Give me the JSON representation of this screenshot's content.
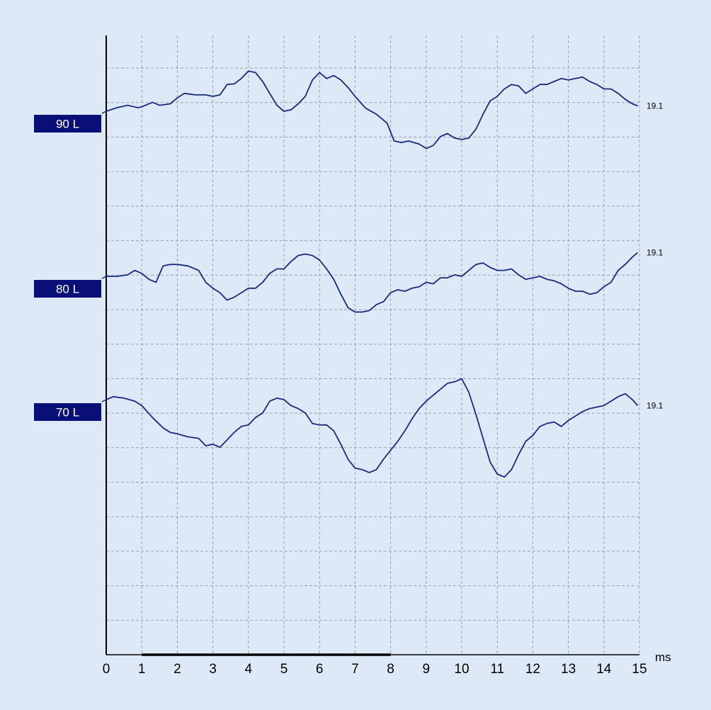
{
  "chart_data": {
    "type": "line",
    "xlabel": "ms",
    "xlim": [
      0,
      15
    ],
    "x_ticks": [
      "0",
      "1",
      "2",
      "3",
      "4",
      "5",
      "6",
      "7",
      "8",
      "9",
      "10",
      "11",
      "12",
      "13",
      "14",
      "15"
    ],
    "grid": true,
    "highlight_range": [
      1,
      8
    ],
    "colors": {
      "background": "#dde9f6",
      "trace": "#1a2a7c",
      "label_box": "#0a0f78",
      "label_text": "#ffffff",
      "grid": "#9aa3ad",
      "axis": "#000000"
    },
    "series": [
      {
        "name": "90 L",
        "end_label": "19.1",
        "x": [
          0,
          0.3,
          0.6,
          0.9,
          1.0,
          1.3,
          1.5,
          1.8,
          2.0,
          2.2,
          2.5,
          2.8,
          3.0,
          3.2,
          3.4,
          3.6,
          3.8,
          4.0,
          4.2,
          4.4,
          4.6,
          4.8,
          5.0,
          5.2,
          5.4,
          5.6,
          5.8,
          6.0,
          6.2,
          6.4,
          6.6,
          6.8,
          7.0,
          7.3,
          7.6,
          7.9,
          8.1,
          8.3,
          8.5,
          8.8,
          9.0,
          9.2,
          9.4,
          9.6,
          9.8,
          10.0,
          10.2,
          10.4,
          10.6,
          10.8,
          11.0,
          11.2,
          11.4,
          11.6,
          11.8,
          12.0,
          12.2,
          12.4,
          12.6,
          12.8,
          13.0,
          13.2,
          13.4,
          13.6,
          13.8,
          14.0,
          14.2,
          14.4,
          14.6,
          14.8,
          14.95
        ],
        "y": [
          0,
          0.12,
          0.2,
          0.12,
          0.15,
          0.3,
          0.2,
          0.25,
          0.45,
          0.6,
          0.55,
          0.55,
          0.5,
          0.55,
          0.9,
          0.92,
          1.1,
          1.35,
          1.3,
          1.0,
          0.6,
          0.2,
          0.0,
          0.05,
          0.25,
          0.5,
          1.05,
          1.3,
          1.1,
          1.2,
          1.05,
          0.8,
          0.5,
          0.1,
          -0.1,
          -0.4,
          -1.0,
          -1.05,
          -1.0,
          -1.1,
          -1.25,
          -1.15,
          -0.85,
          -0.75,
          -0.9,
          -0.95,
          -0.9,
          -0.6,
          -0.1,
          0.35,
          0.5,
          0.75,
          0.9,
          0.85,
          0.6,
          0.75,
          0.9,
          0.9,
          1.0,
          1.1,
          1.05,
          1.1,
          1.15,
          1.0,
          0.9,
          0.75,
          0.75,
          0.6,
          0.4,
          0.25,
          0.18
        ]
      },
      {
        "name": "80 L",
        "end_label": "19.1",
        "x": [
          0,
          0.3,
          0.6,
          0.8,
          1.0,
          1.2,
          1.4,
          1.6,
          1.8,
          2.0,
          2.3,
          2.6,
          2.8,
          3.0,
          3.2,
          3.4,
          3.6,
          3.8,
          4.0,
          4.2,
          4.4,
          4.6,
          4.8,
          5.0,
          5.2,
          5.4,
          5.6,
          5.8,
          6.0,
          6.2,
          6.4,
          6.6,
          6.8,
          7.0,
          7.2,
          7.4,
          7.6,
          7.8,
          8.0,
          8.2,
          8.4,
          8.6,
          8.8,
          9.0,
          9.2,
          9.4,
          9.6,
          9.8,
          10.0,
          10.2,
          10.4,
          10.6,
          10.8,
          11.0,
          11.2,
          11.4,
          11.6,
          11.8,
          12.0,
          12.2,
          12.4,
          12.6,
          12.8,
          13.0,
          13.2,
          13.4,
          13.6,
          13.8,
          14.0,
          14.2,
          14.4,
          14.6,
          14.8,
          14.95
        ],
        "y": [
          0,
          0.0,
          0.05,
          0.2,
          0.1,
          -0.1,
          -0.2,
          0.35,
          0.4,
          0.4,
          0.35,
          0.2,
          -0.2,
          -0.4,
          -0.55,
          -0.8,
          -0.7,
          -0.55,
          -0.4,
          -0.4,
          -0.2,
          0.1,
          0.25,
          0.25,
          0.5,
          0.7,
          0.75,
          0.7,
          0.55,
          0.25,
          -0.1,
          -0.6,
          -1.05,
          -1.2,
          -1.2,
          -1.15,
          -0.95,
          -0.85,
          -0.55,
          -0.45,
          -0.5,
          -0.4,
          -0.35,
          -0.2,
          -0.25,
          -0.05,
          -0.05,
          0.05,
          0.0,
          0.2,
          0.4,
          0.45,
          0.3,
          0.2,
          0.2,
          0.25,
          0.05,
          -0.1,
          -0.05,
          0.0,
          -0.1,
          -0.15,
          -0.25,
          -0.4,
          -0.5,
          -0.5,
          -0.6,
          -0.55,
          -0.35,
          -0.2,
          0.2,
          0.4,
          0.65,
          0.8
        ]
      },
      {
        "name": "70 L",
        "end_label": "19.1",
        "x": [
          0,
          0.2,
          0.5,
          0.8,
          1.0,
          1.3,
          1.6,
          1.8,
          2.0,
          2.3,
          2.6,
          2.8,
          3.0,
          3.2,
          3.4,
          3.6,
          3.8,
          4.0,
          4.2,
          4.4,
          4.6,
          4.8,
          5.0,
          5.2,
          5.4,
          5.6,
          5.8,
          6.0,
          6.2,
          6.4,
          6.6,
          6.8,
          7.0,
          7.2,
          7.4,
          7.6,
          7.8,
          8.0,
          8.2,
          8.4,
          8.6,
          8.8,
          9.0,
          9.2,
          9.4,
          9.6,
          9.8,
          10.0,
          10.2,
          10.4,
          10.6,
          10.8,
          11.0,
          11.2,
          11.4,
          11.6,
          11.8,
          12.0,
          12.2,
          12.4,
          12.6,
          12.8,
          13.0,
          13.2,
          13.4,
          13.6,
          13.8,
          14.0,
          14.2,
          14.4,
          14.6,
          14.8,
          14.95
        ],
        "y": [
          0,
          0.1,
          0.05,
          -0.05,
          -0.2,
          -0.6,
          -0.95,
          -1.1,
          -1.15,
          -1.25,
          -1.3,
          -1.55,
          -1.5,
          -1.6,
          -1.35,
          -1.1,
          -0.9,
          -0.85,
          -0.6,
          -0.45,
          -0.05,
          0.05,
          0.0,
          -0.2,
          -0.3,
          -0.45,
          -0.8,
          -0.85,
          -0.85,
          -1.05,
          -1.5,
          -2.0,
          -2.3,
          -2.35,
          -2.45,
          -2.35,
          -2.0,
          -1.7,
          -1.4,
          -1.05,
          -0.65,
          -0.3,
          -0.05,
          0.15,
          0.35,
          0.55,
          0.6,
          0.7,
          0.25,
          -0.5,
          -1.3,
          -2.1,
          -2.5,
          -2.6,
          -2.35,
          -1.85,
          -1.4,
          -1.2,
          -0.9,
          -0.8,
          -0.75,
          -0.9,
          -0.7,
          -0.55,
          -0.4,
          -0.3,
          -0.25,
          -0.2,
          -0.05,
          0.1,
          0.2,
          0.0,
          -0.2
        ]
      }
    ]
  }
}
